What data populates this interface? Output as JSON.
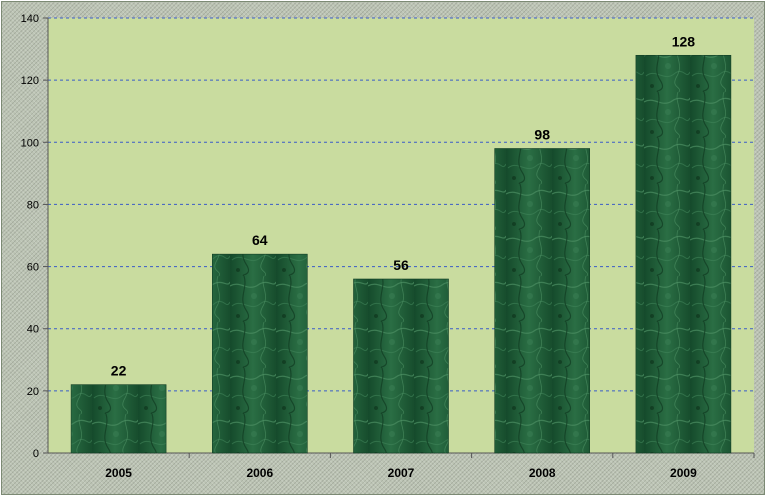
{
  "colors": {
    "frame": "#bcc4b4",
    "plot_area": "#c9dc9f",
    "bar": "#1e5a35",
    "gridline": "#3a5bc8",
    "axis": "#555555"
  },
  "chart_data": {
    "type": "bar",
    "categories": [
      "2005",
      "2006",
      "2007",
      "2008",
      "2009"
    ],
    "values": [
      22,
      64,
      56,
      98,
      128
    ],
    "title": "",
    "xlabel": "",
    "ylabel": "",
    "ylim": [
      0,
      140
    ],
    "yticks": [
      "0",
      "20",
      "40",
      "60",
      "80",
      "100",
      "120",
      "140"
    ],
    "grid": true,
    "grid_style": "dashed",
    "legend": "none",
    "data_labels": [
      "22",
      "64",
      "56",
      "98",
      "128"
    ]
  }
}
